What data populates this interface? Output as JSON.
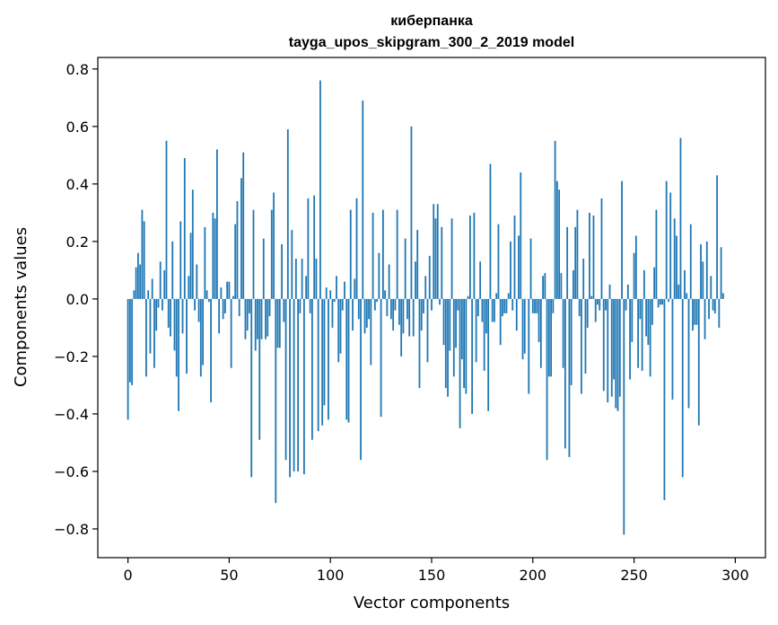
{
  "chart_data": {
    "type": "bar",
    "title": "киберпанка",
    "subtitle": "tayga_upos_skipgram_300_2_2019 model",
    "xlabel": "Vector components",
    "ylabel": "Components values",
    "xlim": [
      -14.9,
      314.9
    ],
    "ylim": [
      -0.9,
      0.84
    ],
    "xticks": [
      0,
      50,
      100,
      150,
      200,
      250,
      300
    ],
    "yticks": [
      -0.8,
      -0.6,
      -0.4,
      -0.2,
      0.0,
      0.2,
      0.4,
      0.6,
      0.8
    ],
    "ytick_labels": [
      "−0.8",
      "−0.6",
      "−0.4",
      "−0.2",
      "0.0",
      "0.2",
      "0.4",
      "0.6",
      "0.8"
    ],
    "bar_color": "#1f77b4",
    "grid": false,
    "values": [
      -0.42,
      -0.29,
      -0.3,
      0.03,
      0.11,
      0.16,
      0.12,
      0.31,
      0.27,
      -0.27,
      0.03,
      -0.19,
      0.07,
      -0.24,
      -0.11,
      -0.03,
      0.13,
      -0.04,
      0.1,
      0.55,
      -0.1,
      -0.13,
      0.2,
      -0.18,
      -0.27,
      -0.39,
      0.27,
      -0.12,
      0.49,
      -0.26,
      0.08,
      0.23,
      0.38,
      -0.04,
      0.12,
      -0.08,
      -0.27,
      -0.23,
      0.25,
      0.03,
      -0.01,
      -0.36,
      0.3,
      0.28,
      0.52,
      -0.12,
      0.04,
      -0.07,
      -0.05,
      0.06,
      0.06,
      -0.24,
      0.01,
      0.26,
      0.34,
      -0.06,
      0.42,
      0.51,
      -0.14,
      -0.11,
      -0.05,
      -0.62,
      0.31,
      -0.18,
      -0.14,
      -0.49,
      -0.14,
      0.21,
      -0.14,
      -0.13,
      -0.06,
      0.31,
      0.37,
      -0.71,
      -0.17,
      -0.17,
      0.19,
      -0.08,
      -0.56,
      0.59,
      -0.62,
      0.24,
      -0.6,
      0.14,
      -0.6,
      -0.05,
      0.14,
      -0.61,
      0.08,
      0.35,
      -0.05,
      -0.49,
      0.36,
      0.14,
      -0.46,
      0.76,
      -0.44,
      -0.37,
      0.04,
      -0.42,
      0.03,
      -0.1,
      -0.01,
      0.08,
      -0.22,
      -0.19,
      -0.04,
      0.06,
      -0.42,
      -0.43,
      0.31,
      -0.11,
      0.07,
      0.35,
      -0.07,
      -0.56,
      0.69,
      -0.12,
      -0.1,
      -0.07,
      -0.23,
      0.3,
      -0.04,
      -0.01,
      0.16,
      -0.41,
      0.31,
      0.03,
      -0.06,
      0.12,
      -0.07,
      -0.11,
      -0.04,
      0.31,
      -0.09,
      -0.2,
      -0.12,
      0.21,
      -0.07,
      -0.13,
      0.6,
      -0.13,
      0.13,
      0.24,
      -0.31,
      -0.11,
      -0.05,
      0.08,
      -0.22,
      0.15,
      -0.04,
      0.33,
      0.28,
      0.33,
      -0.02,
      0.25,
      -0.16,
      -0.31,
      -0.34,
      -0.18,
      0.28,
      -0.27,
      -0.17,
      -0.04,
      -0.45,
      -0.21,
      -0.31,
      -0.33,
      0.01,
      0.29,
      -0.4,
      0.3,
      -0.22,
      -0.06,
      0.13,
      -0.08,
      -0.25,
      -0.12,
      -0.39,
      0.47,
      -0.08,
      -0.08,
      0.02,
      0.26,
      -0.16,
      -0.06,
      -0.05,
      -0.05,
      0.02,
      0.2,
      -0.04,
      0.29,
      -0.11,
      0.22,
      0.44,
      -0.21,
      -0.19,
      0.0,
      -0.33,
      0.21,
      -0.05,
      -0.05,
      -0.05,
      -0.15,
      -0.24,
      0.08,
      0.09,
      -0.56,
      -0.27,
      -0.27,
      -0.05,
      0.55,
      0.41,
      0.38,
      0.09,
      -0.24,
      -0.52,
      0.25,
      -0.55,
      -0.3,
      0.1,
      0.25,
      0.31,
      -0.06,
      -0.33,
      0.14,
      -0.26,
      -0.1,
      0.3,
      0.01,
      0.29,
      -0.08,
      -0.02,
      -0.04,
      0.35,
      -0.32,
      -0.04,
      -0.36,
      0.05,
      -0.34,
      -0.28,
      -0.38,
      -0.39,
      -0.34,
      0.41,
      -0.82,
      -0.04,
      0.05,
      -0.28,
      -0.15,
      0.16,
      0.22,
      -0.24,
      -0.07,
      -0.25,
      0.1,
      -0.13,
      -0.16,
      -0.27,
      -0.09,
      0.11,
      0.31,
      -0.03,
      -0.02,
      -0.02,
      -0.7,
      0.41,
      -0.01,
      0.37,
      -0.35,
      0.28,
      0.22,
      0.05,
      0.56,
      -0.62,
      0.1,
      0.02,
      -0.38,
      0.26,
      -0.11,
      -0.09,
      -0.09,
      -0.44,
      0.19,
      0.13,
      -0.14,
      0.2,
      -0.07,
      0.08,
      -0.04,
      -0.05,
      0.43,
      -0.1,
      0.18,
      0.02
    ]
  }
}
